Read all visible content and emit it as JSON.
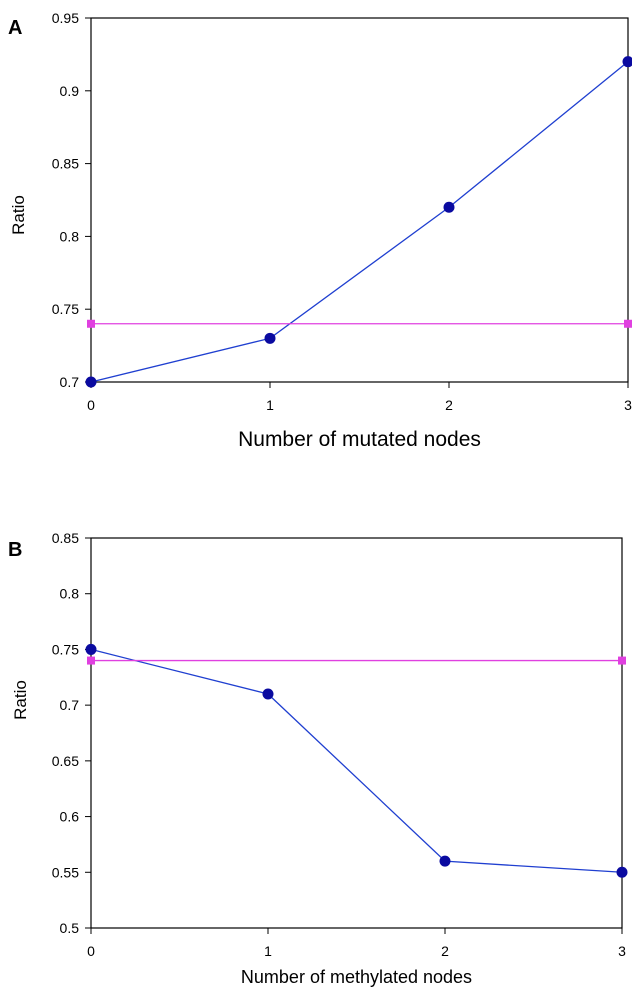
{
  "chart_data": [
    {
      "panel": "A",
      "type": "line",
      "xlabel": "Number of mutated nodes",
      "ylabel": "Ratio",
      "x": [
        0,
        1,
        2,
        3
      ],
      "xticks": [
        "0",
        "1",
        "2",
        "3"
      ],
      "yticks": [
        "0.7",
        "0.75",
        "0.8",
        "0.85",
        "0.9",
        "0.95"
      ],
      "ylim": [
        0.7,
        0.95
      ],
      "xlim": [
        0,
        3
      ],
      "grid": false,
      "series": [
        {
          "values": [
            0.7,
            0.73,
            0.82,
            0.92
          ],
          "color": "#1f3fd0",
          "marker_color": "#0a0aa0",
          "marker": "circle"
        },
        {
          "values": [
            0.74,
            null,
            null,
            0.74
          ],
          "color": "#e040e0",
          "marker_color": "#e040e0",
          "marker": "square"
        }
      ]
    },
    {
      "panel": "B",
      "type": "line",
      "xlabel": "Number of methylated nodes",
      "ylabel": "Ratio",
      "x": [
        0,
        1,
        2,
        3
      ],
      "xticks": [
        "0",
        "1",
        "2",
        "3"
      ],
      "yticks": [
        "0.5",
        "0.55",
        "0.6",
        "0.65",
        "0.7",
        "0.75",
        "0.8",
        "0.85"
      ],
      "ylim": [
        0.5,
        0.85
      ],
      "xlim": [
        0,
        3
      ],
      "grid": false,
      "series": [
        {
          "values": [
            0.75,
            0.71,
            0.56,
            0.55
          ],
          "color": "#1f3fd0",
          "marker_color": "#0a0aa0",
          "marker": "circle"
        },
        {
          "values": [
            0.74,
            null,
            null,
            0.74
          ],
          "color": "#e040e0",
          "marker_color": "#e040e0",
          "marker": "square"
        }
      ]
    }
  ]
}
